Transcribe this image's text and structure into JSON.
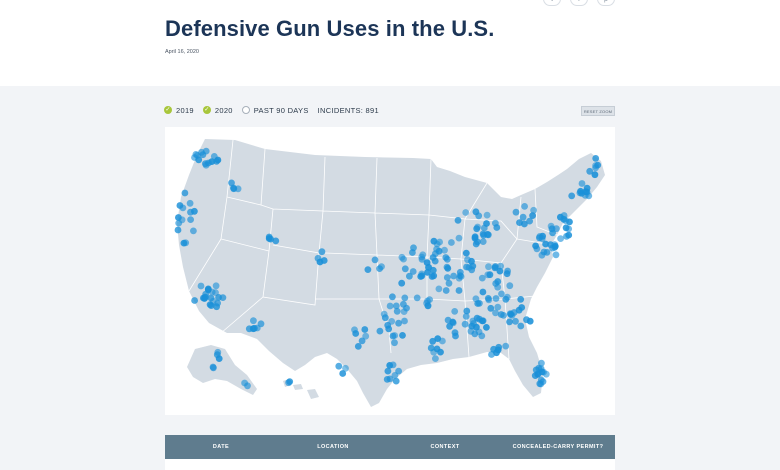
{
  "header": {
    "title": "Defensive Gun Uses in the U.S.",
    "date": "April 16, 2020"
  },
  "share": [
    {
      "name": "twitter-icon",
      "glyph": "t"
    },
    {
      "name": "facebook-icon",
      "glyph": "f"
    },
    {
      "name": "print-icon",
      "glyph": "p"
    }
  ],
  "filters": {
    "items": [
      {
        "label": "2019",
        "checked": true
      },
      {
        "label": "2020",
        "checked": true
      },
      {
        "label": "PAST 90 DAYS",
        "checked": false
      }
    ],
    "incidents_label": "INCIDENTS: 891"
  },
  "reset_label": "RESET ZOOM",
  "map": {
    "land_color": "#d3dbe3",
    "border_color": "#ffffff",
    "dot_color": "#1a90d8",
    "background": "#ffffff"
  },
  "table": {
    "columns": [
      "DATE",
      "LOCATION",
      "CONTEXT",
      "CONCEALED-CARRY PERMIT?"
    ],
    "header_color": "#5f7c8e"
  }
}
